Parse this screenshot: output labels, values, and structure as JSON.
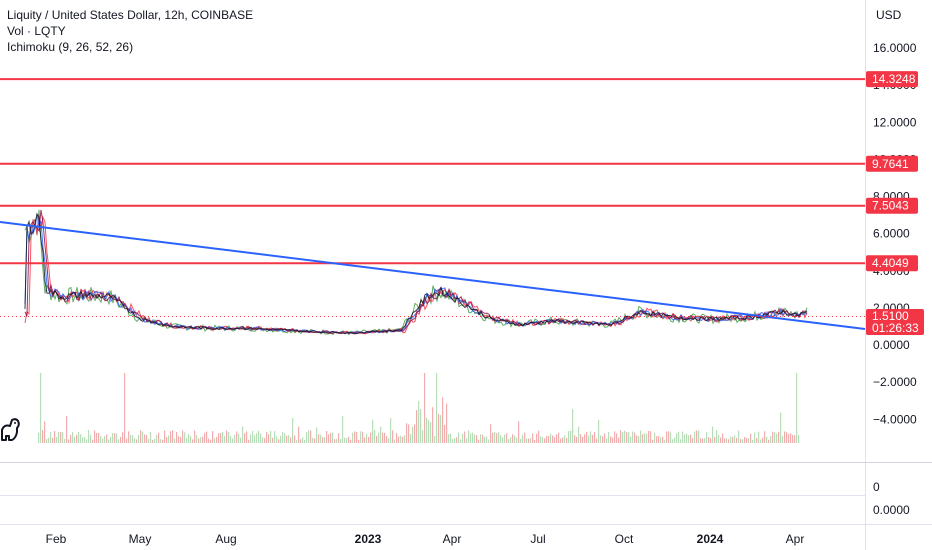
{
  "legend": {
    "title": "Liquity / United States Dollar, 12h, COINBASE",
    "volume": "Vol · LQTY",
    "ichimoku": "Ichimoku (9, 26, 52, 26)"
  },
  "currency": "USD",
  "price_axis": [
    "16.0000",
    "14.0000",
    "12.0000",
    "10.0000",
    "8.0000",
    "6.0000",
    "4.0000",
    "2.0000",
    "0.0000",
    "−2.0000",
    "−4.0000"
  ],
  "sub_axis": [
    "0",
    "0.0000"
  ],
  "levels": [
    {
      "label": "14.3248",
      "value": 14.3248
    },
    {
      "label": "9.7641",
      "value": 9.7641
    },
    {
      "label": "7.5043",
      "value": 7.5043
    },
    {
      "label": "4.4049",
      "value": 4.4049
    }
  ],
  "current_price": {
    "label": "1.5100",
    "countdown": "01:26:33",
    "value": 1.51
  },
  "time_axis": [
    {
      "label": "Feb",
      "bold": false
    },
    {
      "label": "May",
      "bold": false
    },
    {
      "label": "Aug",
      "bold": false
    },
    {
      "label": "2023",
      "bold": true
    },
    {
      "label": "Apr",
      "bold": false
    },
    {
      "label": "Jul",
      "bold": false
    },
    {
      "label": "Oct",
      "bold": false
    },
    {
      "label": "2024",
      "bold": true
    },
    {
      "label": "Apr",
      "bold": false
    }
  ],
  "colors": {
    "level_line": "#f23645",
    "trend_line": "#2962ff",
    "price_tag": "#f23645",
    "ichimoku_green": "#43a047",
    "ichimoku_red": "#f23645",
    "volume": "#ef9a9a"
  },
  "icons": {
    "logo": "tradingview-dino-icon"
  }
}
